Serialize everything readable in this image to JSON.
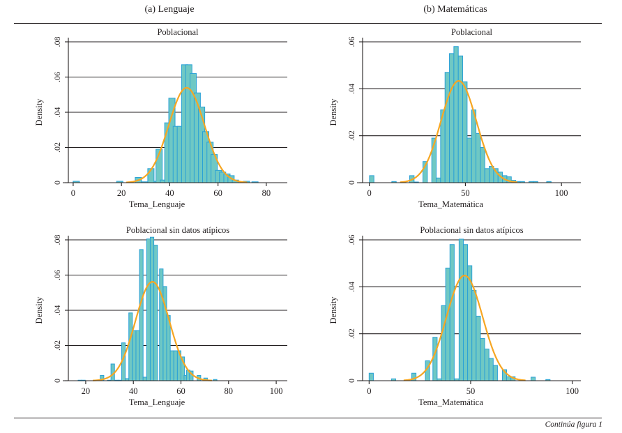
{
  "figure": {
    "columns": [
      {
        "label": "(a) Lenguaje"
      },
      {
        "label": "(b) Matemáticas"
      }
    ],
    "footer_note": "Continúa figura 1",
    "colors": {
      "bar_fill": "#6fc8c4",
      "bar_stroke": "#2aa1d6",
      "curve": "#f6a623",
      "axis": "#231f20"
    }
  },
  "chart_data": [
    {
      "type": "bar",
      "subtype": "histogram-with-normal-curve",
      "title": "Poblacional",
      "xlabel": "Tema_Lenguaje",
      "ylabel": "Density",
      "xlim": [
        -2,
        91
      ],
      "ylim": [
        0,
        0.08
      ],
      "xticks": [
        0,
        20,
        40,
        60,
        80
      ],
      "xtick_labels": [
        "0",
        "20",
        "40",
        "60",
        "80"
      ],
      "yticks": [
        0,
        0.02,
        0.04,
        0.06,
        0.08
      ],
      "ytick_labels": [
        "0",
        ".02",
        ".04",
        ".06",
        ".08"
      ],
      "grid": true,
      "bin_width": 2.6,
      "bins": [
        {
          "x": 0,
          "density": 0.0008
        },
        {
          "x": 18,
          "density": 0.0008
        },
        {
          "x": 25.7,
          "density": 0.003
        },
        {
          "x": 28.3,
          "density": 0.0005
        },
        {
          "x": 30.9,
          "density": 0.008
        },
        {
          "x": 33.5,
          "density": 0.0008
        },
        {
          "x": 34.3,
          "density": 0.019
        },
        {
          "x": 36.1,
          "density": 0.0015
        },
        {
          "x": 37.9,
          "density": 0.034
        },
        {
          "x": 39.6,
          "density": 0.048
        },
        {
          "x": 41.4,
          "density": 0.032
        },
        {
          "x": 43.1,
          "density": 0.032
        },
        {
          "x": 44.9,
          "density": 0.067
        },
        {
          "x": 46.6,
          "density": 0.067
        },
        {
          "x": 48.4,
          "density": 0.062
        },
        {
          "x": 50.1,
          "density": 0.051
        },
        {
          "x": 51.9,
          "density": 0.043
        },
        {
          "x": 53.6,
          "density": 0.029
        },
        {
          "x": 55.4,
          "density": 0.023
        },
        {
          "x": 57.1,
          "density": 0.016
        },
        {
          "x": 58.9,
          "density": 0.007
        },
        {
          "x": 60.6,
          "density": 0.006
        },
        {
          "x": 62.4,
          "density": 0.005
        },
        {
          "x": 64.1,
          "density": 0.004
        },
        {
          "x": 65.9,
          "density": 0.0015
        },
        {
          "x": 70.5,
          "density": 0.0008
        },
        {
          "x": 74.0,
          "density": 0.0005
        }
      ],
      "normal_curve": {
        "mean": 47.0,
        "sd": 7.4,
        "x_range": [
          22,
          72
        ]
      }
    },
    {
      "type": "bar",
      "subtype": "histogram-with-normal-curve",
      "title": "Poblacional",
      "xlabel": "Tema_Matemática",
      "ylabel": "Density",
      "xlim": [
        -3.5,
        113
      ],
      "ylim": [
        0,
        0.06
      ],
      "xticks": [
        0,
        50,
        100
      ],
      "xtick_labels": [
        "0",
        "50",
        "100"
      ],
      "yticks": [
        0,
        0.02,
        0.04,
        0.06
      ],
      "ytick_labels": [
        "0",
        ".02",
        ".04",
        ".06"
      ],
      "grid": true,
      "bin_width": 2.3,
      "bins": [
        {
          "x": 0.1,
          "density": 0.003
        },
        {
          "x": 11.7,
          "density": 0.0005
        },
        {
          "x": 21.0,
          "density": 0.003
        },
        {
          "x": 23.3,
          "density": 0.0003
        },
        {
          "x": 27.9,
          "density": 0.009
        },
        {
          "x": 32.5,
          "density": 0.019
        },
        {
          "x": 34.8,
          "density": 0.002
        },
        {
          "x": 37.1,
          "density": 0.031
        },
        {
          "x": 39.4,
          "density": 0.047
        },
        {
          "x": 41.7,
          "density": 0.055
        },
        {
          "x": 44.0,
          "density": 0.058
        },
        {
          "x": 46.3,
          "density": 0.054
        },
        {
          "x": 48.6,
          "density": 0.043
        },
        {
          "x": 50.9,
          "density": 0.019
        },
        {
          "x": 53.2,
          "density": 0.031
        },
        {
          "x": 55.5,
          "density": 0.021
        },
        {
          "x": 57.8,
          "density": 0.015
        },
        {
          "x": 60.1,
          "density": 0.006
        },
        {
          "x": 62.4,
          "density": 0.007
        },
        {
          "x": 64.7,
          "density": 0.006
        },
        {
          "x": 67.0,
          "density": 0.0045
        },
        {
          "x": 69.3,
          "density": 0.003
        },
        {
          "x": 71.6,
          "density": 0.0025
        },
        {
          "x": 73.9,
          "density": 0.001
        },
        {
          "x": 76.2,
          "density": 0.0005
        },
        {
          "x": 78.5,
          "density": 0.0005
        },
        {
          "x": 83.1,
          "density": 0.0005
        },
        {
          "x": 85.4,
          "density": 0.0005
        },
        {
          "x": 92.3,
          "density": 0.0005
        }
      ],
      "normal_curve": {
        "mean": 46.5,
        "sd": 9.2,
        "x_range": [
          16,
          77
        ]
      }
    },
    {
      "type": "bar",
      "subtype": "histogram-with-normal-curve",
      "title": "Poblacional sin datos atípicos",
      "xlabel": "Tema_Lenguaje",
      "ylabel": "Density",
      "xlim": [
        12.7,
        107
      ],
      "ylim": [
        0,
        0.08
      ],
      "xticks": [
        20,
        40,
        60,
        80,
        100
      ],
      "xtick_labels": [
        "20",
        "40",
        "60",
        "80",
        "100"
      ],
      "yticks": [
        0,
        0.02,
        0.04,
        0.06,
        0.08
      ],
      "ytick_labels": [
        "0",
        ".02",
        ".04",
        ".06",
        ".08"
      ],
      "grid": true,
      "bin_width": 1.5,
      "bins": [
        {
          "x": 16.8,
          "density": 0.0003
        },
        {
          "x": 18.3,
          "density": 0.0003
        },
        {
          "x": 26.1,
          "density": 0.003
        },
        {
          "x": 29.1,
          "density": 0.0003
        },
        {
          "x": 30.6,
          "density": 0.0095
        },
        {
          "x": 32.1,
          "density": 0.0003
        },
        {
          "x": 33.6,
          "density": 0.0003
        },
        {
          "x": 35.1,
          "density": 0.0215
        },
        {
          "x": 36.6,
          "density": 0.0012
        },
        {
          "x": 38.1,
          "density": 0.0385
        },
        {
          "x": 39.6,
          "density": 0.0285
        },
        {
          "x": 41.1,
          "density": 0.0285
        },
        {
          "x": 42.6,
          "density": 0.0745
        },
        {
          "x": 44.1,
          "density": 0.002
        },
        {
          "x": 45.6,
          "density": 0.0805
        },
        {
          "x": 47.1,
          "density": 0.0815
        },
        {
          "x": 48.6,
          "density": 0.077
        },
        {
          "x": 51.0,
          "density": 0.0635
        },
        {
          "x": 52.5,
          "density": 0.0535
        },
        {
          "x": 54.0,
          "density": 0.037
        },
        {
          "x": 55.5,
          "density": 0.017
        },
        {
          "x": 57.0,
          "density": 0.017
        },
        {
          "x": 58.5,
          "density": 0.017
        },
        {
          "x": 60.0,
          "density": 0.0135
        },
        {
          "x": 61.3,
          "density": 0.003
        },
        {
          "x": 62.3,
          "density": 0.006
        },
        {
          "x": 63.6,
          "density": 0.0055
        },
        {
          "x": 66.8,
          "density": 0.003
        },
        {
          "x": 69.6,
          "density": 0.0015
        },
        {
          "x": 73.6,
          "density": 0.0007
        }
      ],
      "normal_curve": {
        "mean": 48.0,
        "sd": 7.1,
        "x_range": [
          23,
          73
        ]
      }
    },
    {
      "type": "bar",
      "subtype": "histogram-with-normal-curve",
      "title": "Poblacional sin datos atípicos",
      "xlabel": "Tema_Matemática",
      "ylabel": "Density",
      "xlim": [
        -3.2,
        107
      ],
      "ylim": [
        0,
        0.06
      ],
      "xticks": [
        0,
        50,
        100
      ],
      "xtick_labels": [
        "0",
        "50",
        "100"
      ],
      "yticks": [
        0,
        0.02,
        0.04,
        0.06
      ],
      "ytick_labels": [
        "0",
        ".02",
        ".04",
        ".06"
      ],
      "grid": true,
      "bin_width": 2.1,
      "bins": [
        {
          "x": 0.0,
          "density": 0.0032
        },
        {
          "x": 11.0,
          "density": 0.0008
        },
        {
          "x": 21.0,
          "density": 0.0032
        },
        {
          "x": 27.7,
          "density": 0.0085
        },
        {
          "x": 31.4,
          "density": 0.0185
        },
        {
          "x": 33.5,
          "density": 0.0008
        },
        {
          "x": 35.6,
          "density": 0.032
        },
        {
          "x": 37.7,
          "density": 0.048
        },
        {
          "x": 39.8,
          "density": 0.058
        },
        {
          "x": 42.1,
          "density": 0.0008
        },
        {
          "x": 44.3,
          "density": 0.0603
        },
        {
          "x": 46.4,
          "density": 0.058
        },
        {
          "x": 48.5,
          "density": 0.049
        },
        {
          "x": 50.6,
          "density": 0.0385
        },
        {
          "x": 52.7,
          "density": 0.0275
        },
        {
          "x": 54.8,
          "density": 0.018
        },
        {
          "x": 56.9,
          "density": 0.0135
        },
        {
          "x": 59.0,
          "density": 0.0095
        },
        {
          "x": 61.1,
          "density": 0.0065
        },
        {
          "x": 65.6,
          "density": 0.0047
        },
        {
          "x": 67.7,
          "density": 0.0017
        },
        {
          "x": 69.8,
          "density": 0.0017
        },
        {
          "x": 79.7,
          "density": 0.0015
        },
        {
          "x": 87.0,
          "density": 0.0005
        }
      ],
      "normal_curve": {
        "mean": 47.0,
        "sd": 8.9,
        "x_range": [
          17,
          77
        ]
      }
    }
  ]
}
